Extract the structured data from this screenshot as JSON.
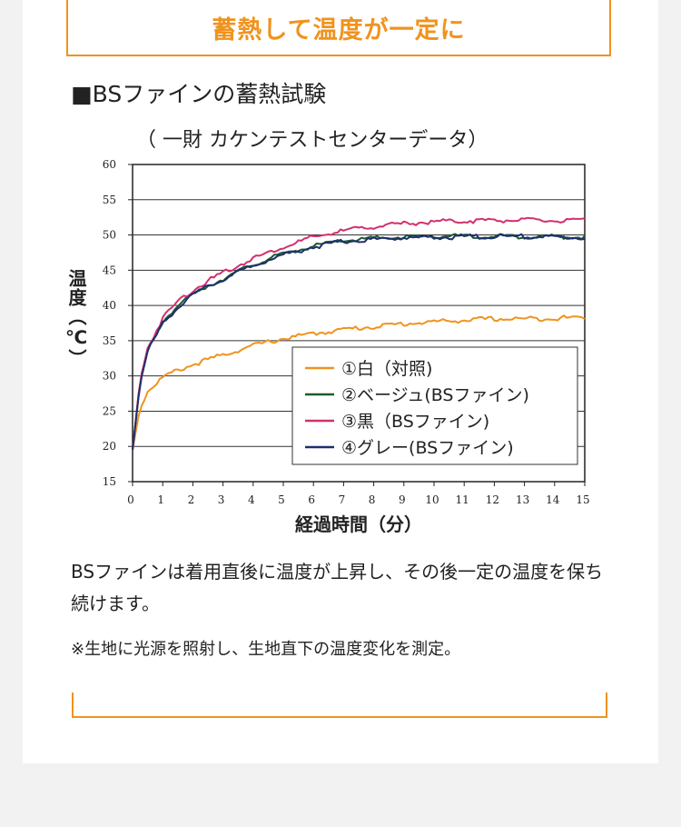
{
  "banner": {
    "title": "蓄熱して温度が一定に"
  },
  "section": {
    "title": "■BSファインの蓄熱試験"
  },
  "chart_data": {
    "type": "line",
    "title": "",
    "subtitle": "（ 一財 カケンテストセンターデータ）",
    "xlabel": "経過時間（分）",
    "ylabel": "温度（℃）",
    "xlim": [
      0,
      15
    ],
    "ylim": [
      15,
      60
    ],
    "xticks": [
      0,
      1,
      2,
      3,
      4,
      5,
      6,
      7,
      8,
      9,
      10,
      11,
      12,
      13,
      14,
      15
    ],
    "yticks": [
      15,
      20,
      25,
      30,
      35,
      40,
      45,
      50,
      55,
      60
    ],
    "grid": "horizontal",
    "legend": "bottom-right",
    "x": [
      0,
      0.25,
      0.5,
      1,
      1.5,
      2,
      2.5,
      3,
      4,
      5,
      6,
      7,
      8,
      9,
      10,
      11,
      12,
      13,
      14,
      15
    ],
    "series": [
      {
        "name": "①白（対照)",
        "color": "#f0931e",
        "values": [
          19.5,
          25.5,
          27.8,
          29.8,
          30.8,
          31.6,
          32.3,
          33.0,
          34.3,
          35.3,
          36.0,
          36.6,
          37.0,
          37.4,
          37.7,
          37.9,
          38.1,
          38.1,
          38.2,
          38.3
        ]
      },
      {
        "name": "②ベージュ(BSファイン)",
        "color": "#1f5a2c",
        "values": [
          19.5,
          29.0,
          33.5,
          37.7,
          40.0,
          41.5,
          42.8,
          43.8,
          45.8,
          47.3,
          48.4,
          49.2,
          49.5,
          49.7,
          49.8,
          49.8,
          49.8,
          49.8,
          49.8,
          49.7
        ]
      },
      {
        "name": "③黒（BSファイン)",
        "color": "#d2306e",
        "values": [
          19.5,
          29.5,
          34.0,
          38.2,
          40.6,
          42.2,
          43.5,
          44.6,
          46.7,
          48.3,
          49.7,
          50.6,
          51.2,
          51.6,
          51.9,
          52.0,
          52.1,
          52.1,
          52.0,
          52.0
        ]
      },
      {
        "name": "④グレー(BSファイン)",
        "color": "#1d2f6e",
        "values": [
          19.5,
          29.0,
          33.4,
          37.5,
          39.8,
          41.4,
          42.7,
          43.7,
          45.7,
          47.2,
          48.3,
          49.1,
          49.4,
          49.6,
          49.7,
          49.7,
          49.8,
          49.8,
          49.7,
          49.6
        ]
      }
    ]
  },
  "text": {
    "description": "BSファインは着用直後に温度が上昇し、その後一定の温度を保ち続けます。",
    "note": "※生地に光源を照射し、生地直下の温度変化を測定。"
  }
}
